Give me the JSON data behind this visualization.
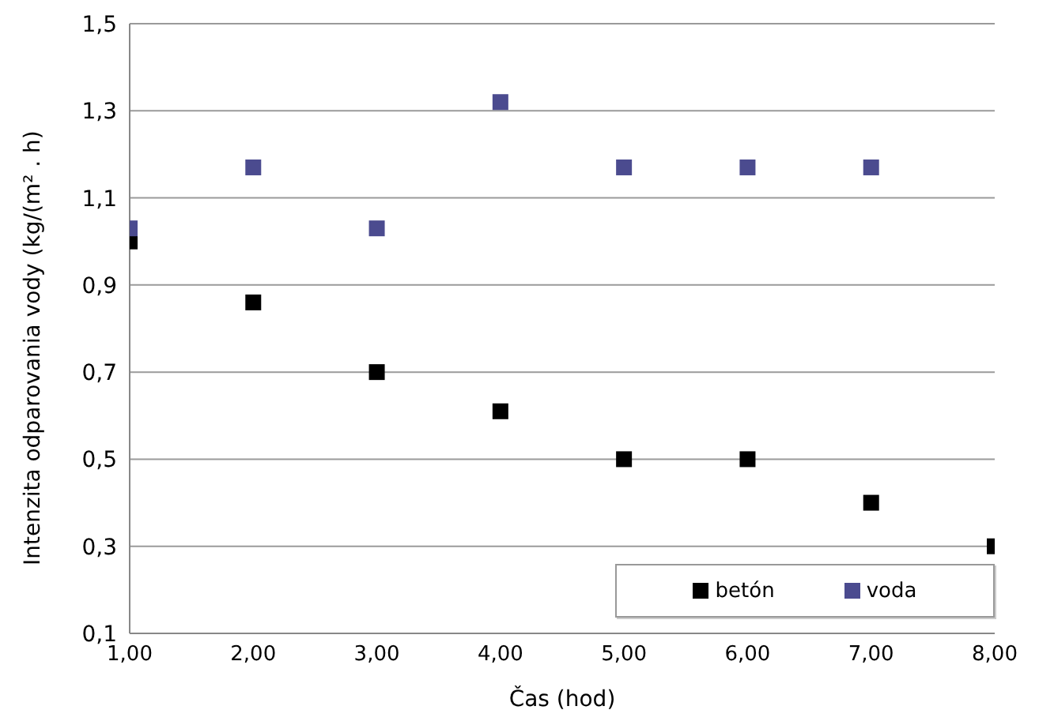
{
  "chart_data": {
    "type": "scatter",
    "xlabel": "Čas (hod)",
    "ylabel": "Intenzita odparovania vody (kg/(m² . h)",
    "series": [
      {
        "name": "betón",
        "color": "#000000",
        "x": [
          1,
          2,
          3,
          4,
          5,
          6,
          7,
          8
        ],
        "values": [
          1.0,
          0.86,
          0.7,
          0.61,
          0.5,
          0.5,
          0.4,
          0.3
        ]
      },
      {
        "name": "voda",
        "color": "#4b4b8f",
        "x": [
          1,
          2,
          3,
          4,
          5,
          6,
          7
        ],
        "values": [
          1.03,
          1.17,
          1.03,
          1.32,
          1.17,
          1.17,
          1.17
        ]
      }
    ],
    "xlim": [
      1,
      8
    ],
    "xticks": [
      {
        "value": 1,
        "label": "1,00"
      },
      {
        "value": 2,
        "label": "2,00"
      },
      {
        "value": 3,
        "label": "3,00"
      },
      {
        "value": 4,
        "label": "4,00"
      },
      {
        "value": 5,
        "label": "5,00"
      },
      {
        "value": 6,
        "label": "6,00"
      },
      {
        "value": 7,
        "label": "7,00"
      },
      {
        "value": 8,
        "label": "8,00"
      }
    ],
    "ylim": [
      0.1,
      1.5
    ],
    "yticks": [
      {
        "value": 0.1,
        "label": "0,1"
      },
      {
        "value": 0.3,
        "label": "0,3"
      },
      {
        "value": 0.5,
        "label": "0,5"
      },
      {
        "value": 0.7,
        "label": "0,7"
      },
      {
        "value": 0.9,
        "label": "0,9"
      },
      {
        "value": 1.1,
        "label": "1,1"
      },
      {
        "value": 1.3,
        "label": "1,3"
      },
      {
        "value": 1.5,
        "label": "1,5"
      }
    ],
    "grid": "y",
    "legend": "bottom right",
    "marker": "square"
  }
}
